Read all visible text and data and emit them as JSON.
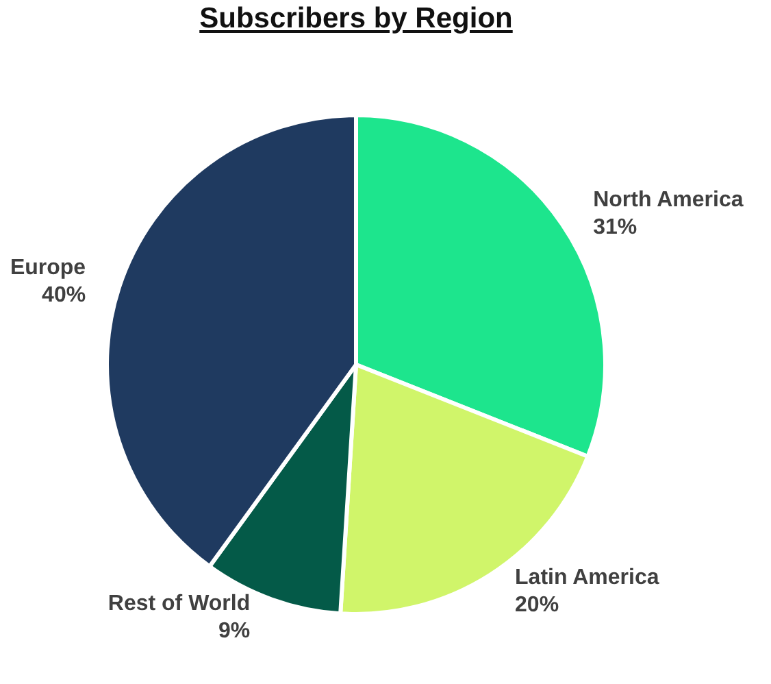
{
  "chart_data": {
    "type": "pie",
    "title": "Subscribers by Region",
    "categories": [
      "North America",
      "Latin America",
      "Rest of World",
      "Europe"
    ],
    "values": [
      31,
      20,
      9,
      40
    ],
    "value_labels": [
      "31%",
      "20%",
      "9%",
      "40%"
    ],
    "colors": [
      "#1de58d",
      "#d0f56a",
      "#045a48",
      "#1f3a60"
    ],
    "legend": false
  }
}
